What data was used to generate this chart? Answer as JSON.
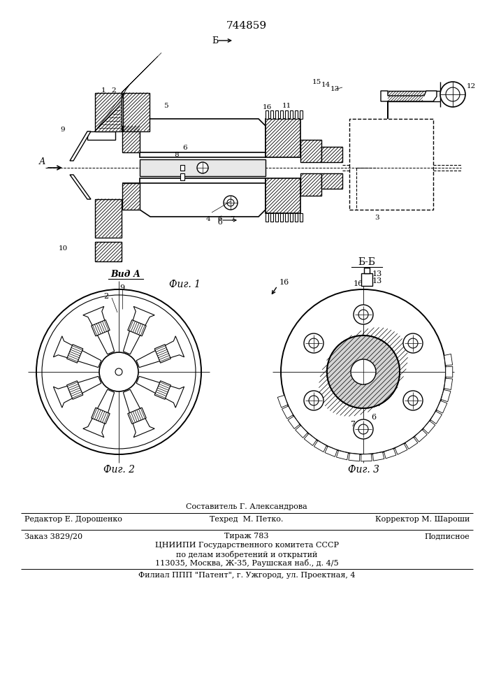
{
  "patent_number": "744859",
  "background_color": "#ffffff",
  "fig_width": 7.07,
  "fig_height": 10.0,
  "dpi": 100,
  "bottom_text_line1_left": "Редактор Е. Дорошенко",
  "bottom_text_line1_center": "Составитель Г. Александрова",
  "bottom_text_line1_right": "Корректор М. Шароши",
  "bottom_text_line2_center": "Техред  М. Петко.",
  "bottom_text_line3_left": "Заказ 3829/20",
  "bottom_text_line3_center": "Тираж 783",
  "bottom_text_line3_right": "Подписное",
  "bottom_text_line4_center": "ЦНИИПИ Государственного комитета СССР",
  "bottom_text_line5_center": "по делам изобретений и открытий",
  "bottom_text_line6_center": "113035, Москва, Ж-35, Раушская наб., д. 4/5",
  "bottom_text_line7_center": "Филиал ППП \"Патент\", г. Ужгород, ул. Проектная, 4",
  "fig1_caption": "Фиг. 1",
  "fig2_caption": "Фиг. 2",
  "fig3_caption": "Фиг. 3",
  "view_a_label": "Вид А",
  "section_bb_label": "Б-Б",
  "line_color": "#000000"
}
